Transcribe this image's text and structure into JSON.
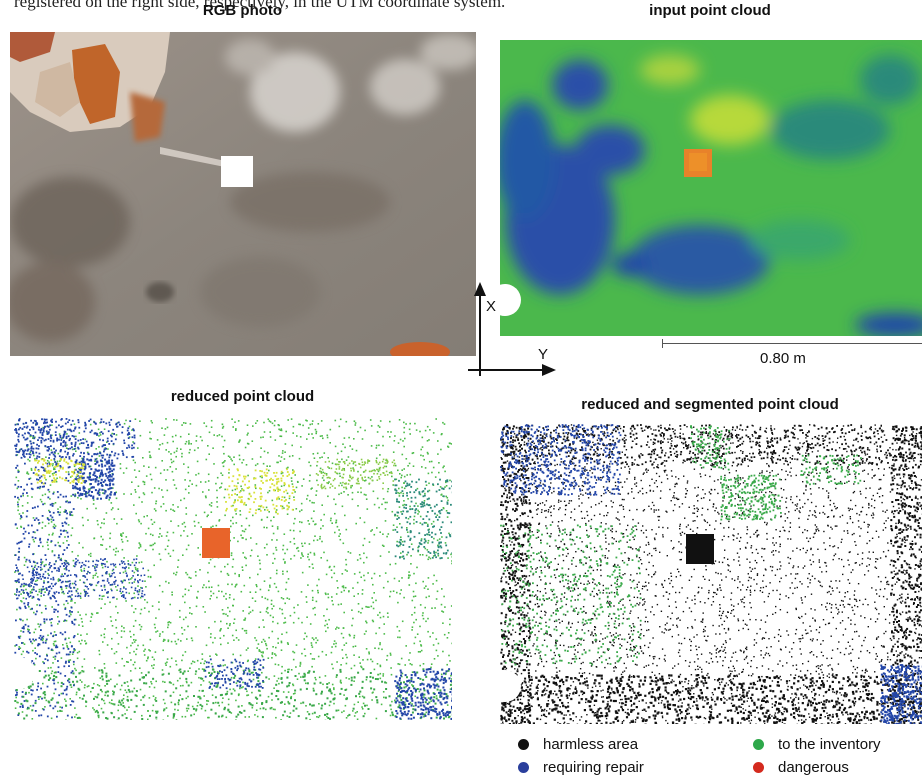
{
  "caption_fragment": "registered on the right side, respectively, in the UTM coordinate system.",
  "panels": {
    "rgb": {
      "title": "RGB photo"
    },
    "input": {
      "title": "input point cloud"
    },
    "reduced": {
      "title": "reduced point cloud"
    },
    "segmented": {
      "title": "reduced and segmented point cloud"
    }
  },
  "axes": {
    "x_label": "X",
    "y_label": "Y"
  },
  "scale_bar": {
    "label": "0.80 m"
  },
  "legend": [
    {
      "label": "harmless area",
      "color": "#111111"
    },
    {
      "label": "to the inventory",
      "color": "#2ea84a"
    },
    {
      "label": "requiring repair",
      "color": "#2a3f9c"
    },
    {
      "label": "dangerous",
      "color": "#d42a1e"
    }
  ],
  "colors": {
    "green": "#4cbb4a",
    "blue": "#2346a8",
    "yellow": "#d9e23a",
    "orange": "#e8822a",
    "black": "#111111"
  }
}
